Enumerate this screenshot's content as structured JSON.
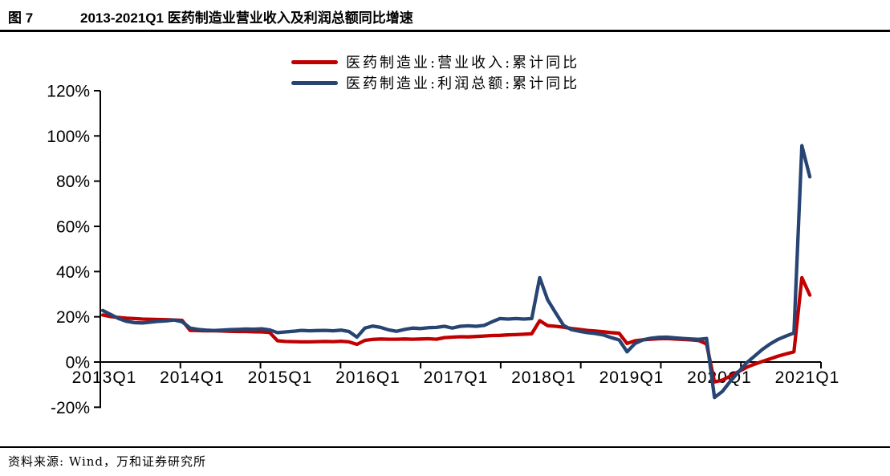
{
  "header": {
    "figure_label": "图 7",
    "title": "2013-2021Q1 医药制造业营业收入及利润总额同比增速"
  },
  "legend": [
    {
      "label": "医药制造业:营业收入:累计同比",
      "color": "#C00000"
    },
    {
      "label": "医药制造业:利润总额:累计同比",
      "color": "#274472"
    }
  ],
  "footer": {
    "source": "资料来源: Wind，万和证券研究所"
  },
  "chart_data": {
    "type": "line",
    "title": "2013-2021Q1 医药制造业营业收入及利润总额同比增速",
    "legend_position": "top",
    "grid": false,
    "ylim": [
      -20,
      120
    ],
    "y_ticks": [
      {
        "label": "120%",
        "value": 120
      },
      {
        "label": "100%",
        "value": 100
      },
      {
        "label": "80%",
        "value": 80
      },
      {
        "label": "60%",
        "value": 60
      },
      {
        "label": "40%",
        "value": 40
      },
      {
        "label": "20%",
        "value": 20
      },
      {
        "label": "0%",
        "value": 0
      },
      {
        "label": "-20%",
        "value": -20
      }
    ],
    "x_tick_labels": [
      "2013Q1",
      "2014Q1",
      "2015Q1",
      "2016Q1",
      "2017Q1",
      "2018Q1",
      "2019Q1",
      "2020Q1",
      "2021Q1"
    ],
    "x_note": "monthly cumulative YoY points, Feb 2013 – Mar 2021 (no January readings)",
    "series": [
      {
        "name": "医药制造业:营业收入:累计同比",
        "color": "#C00000",
        "values": [
          20.8,
          20.1,
          19.7,
          19.4,
          19.2,
          19.0,
          18.9,
          18.8,
          18.7,
          18.6,
          18.4,
          14.0,
          13.9,
          13.8,
          13.8,
          13.7,
          13.6,
          13.5,
          13.5,
          13.4,
          13.3,
          13.1,
          9.4,
          9.1,
          9.0,
          8.9,
          8.9,
          9.0,
          9.1,
          9.0,
          9.2,
          8.9,
          7.8,
          9.6,
          10.0,
          10.2,
          10.1,
          10.1,
          10.2,
          10.1,
          10.2,
          10.3,
          10.1,
          10.8,
          11.0,
          11.2,
          11.1,
          11.3,
          11.5,
          11.7,
          11.8,
          12.0,
          12.1,
          12.3,
          12.5,
          18.3,
          16.1,
          15.8,
          15.4,
          14.8,
          14.4,
          14.0,
          13.7,
          13.4,
          13.0,
          12.7,
          8.2,
          9.4,
          9.8,
          10.1,
          10.3,
          10.4,
          10.2,
          10.0,
          9.8,
          9.5,
          8.0,
          -8.8,
          -8.0,
          -6.2,
          -4.3,
          -2.4,
          -1.0,
          0.2,
          1.4,
          2.6,
          3.6,
          4.5,
          37.3,
          29.6
        ]
      },
      {
        "name": "医药制造业:利润总额:累计同比",
        "color": "#274472",
        "values": [
          22.8,
          21.0,
          19.2,
          18.0,
          17.4,
          17.3,
          17.6,
          18.0,
          18.2,
          18.6,
          17.8,
          15.0,
          14.4,
          14.1,
          13.9,
          14.1,
          14.3,
          14.4,
          14.6,
          14.5,
          14.7,
          14.2,
          13.0,
          13.3,
          13.6,
          14.0,
          13.8,
          13.9,
          14.0,
          13.8,
          14.1,
          13.5,
          11.0,
          15.0,
          15.9,
          15.3,
          14.2,
          13.6,
          14.4,
          15.0,
          14.8,
          15.2,
          15.3,
          15.8,
          15.0,
          15.8,
          16.0,
          15.8,
          16.2,
          17.8,
          19.2,
          19.0,
          19.2,
          19.0,
          19.2,
          37.3,
          27.5,
          21.8,
          16.2,
          14.3,
          13.6,
          13.0,
          12.6,
          12.0,
          10.8,
          9.8,
          4.5,
          8.2,
          9.8,
          10.5,
          10.9,
          11.0,
          10.7,
          10.4,
          10.2,
          10.0,
          10.4,
          -15.7,
          -13.0,
          -8.5,
          -4.5,
          -0.5,
          2.5,
          5.5,
          8.0,
          10.0,
          11.5,
          12.8,
          95.7,
          81.9
        ]
      }
    ]
  }
}
